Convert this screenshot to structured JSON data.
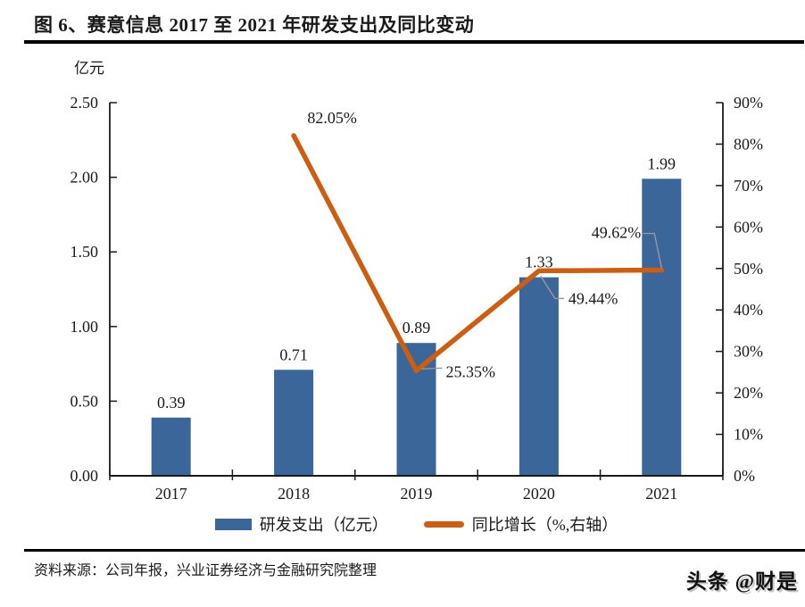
{
  "figure": {
    "title": "图 6、赛意信息 2017 至 2021 年研发支出及同比变动",
    "unit_label": "亿元",
    "source": "资料来源：公司年报，兴业证券经济与金融研究院整理",
    "watermark": "头条 @财是"
  },
  "colors": {
    "bar": "#3A6699",
    "line": "#CE5D10",
    "axis": "#1a1a1a",
    "text": "#1a1a1a",
    "leader": "#999999"
  },
  "chart_data": {
    "type": "bar",
    "subtype": "bar+line combo, line on secondary right axis",
    "categories": [
      "2017",
      "2018",
      "2019",
      "2020",
      "2021"
    ],
    "series": [
      {
        "name": "研发支出（亿元）",
        "type": "bar",
        "axis": "left",
        "values": [
          0.39,
          0.71,
          0.89,
          1.33,
          1.99
        ],
        "data_labels": [
          "0.39",
          "0.71",
          "0.89",
          "1.33",
          "1.99"
        ]
      },
      {
        "name": "同比增长（%,右轴）",
        "type": "line",
        "axis": "right",
        "values": [
          null,
          82.05,
          25.35,
          49.44,
          49.62
        ],
        "data_labels": [
          null,
          "82.05%",
          "25.35%",
          "49.44%",
          "49.62%"
        ]
      }
    ],
    "left_axis": {
      "title": "亿元",
      "min": 0,
      "max": 2.5,
      "tick_labels": [
        "0.00",
        "0.50",
        "1.00",
        "1.50",
        "2.00",
        "2.50"
      ]
    },
    "right_axis": {
      "min": 0,
      "max": 90,
      "tick_labels": [
        "0%",
        "10%",
        "20%",
        "30%",
        "40%",
        "50%",
        "60%",
        "70%",
        "80%",
        "90%"
      ]
    },
    "legend": [
      {
        "label": "研发支出（亿元）",
        "swatch": "bar"
      },
      {
        "label": "同比增长（%,右轴）",
        "swatch": "line"
      }
    ],
    "legend_position": "bottom",
    "grid": false
  }
}
